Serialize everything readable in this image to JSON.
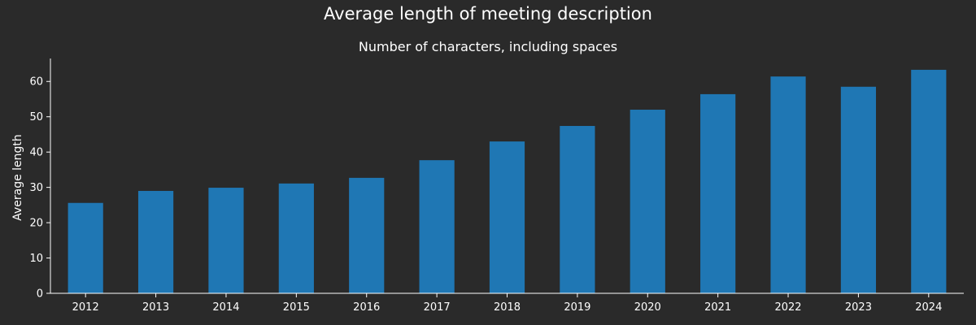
{
  "chart_data": {
    "type": "bar",
    "title": "Average length of meeting description",
    "subtitle": "Number of characters, including spaces",
    "xlabel": "",
    "ylabel": "Average length",
    "categories": [
      "2012",
      "2013",
      "2014",
      "2015",
      "2016",
      "2017",
      "2018",
      "2019",
      "2020",
      "2021",
      "2022",
      "2023",
      "2024"
    ],
    "values": [
      25.6,
      29.0,
      29.9,
      31.1,
      32.7,
      37.7,
      43.0,
      47.4,
      52.0,
      56.4,
      61.4,
      58.5,
      63.3
    ],
    "ylim": [
      0,
      66.5
    ],
    "yticks": [
      0,
      10,
      20,
      30,
      40,
      50,
      60
    ],
    "grid": false,
    "legend": "none",
    "colors": {
      "background": "#2a2a2a",
      "bar": "#1f77b4",
      "axis": "#ffffff",
      "text": "#ffffff"
    }
  }
}
